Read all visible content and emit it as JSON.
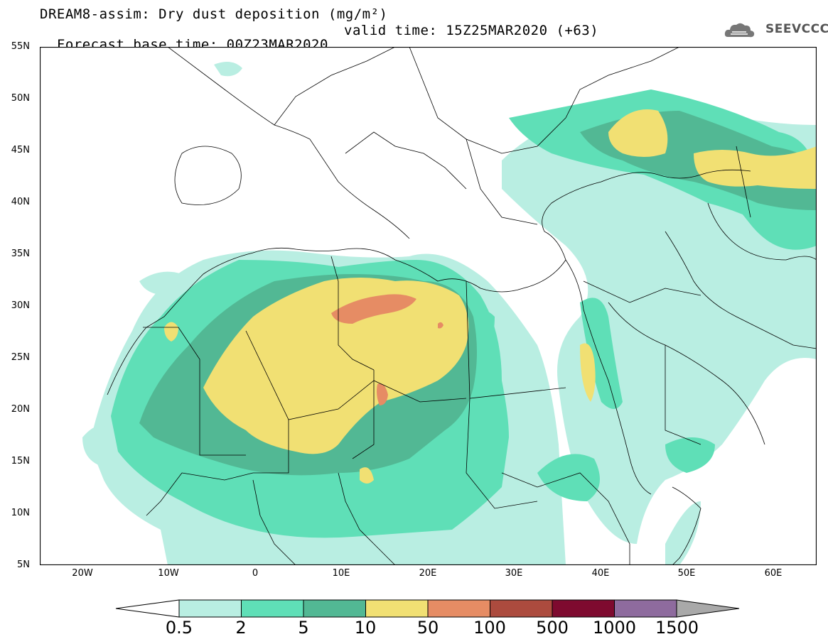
{
  "header": {
    "title_line1": "DREAM8-assim: Dry dust deposition (mg/m²)",
    "base_time": "Forecast base time: 00Z23MAR2020",
    "valid_time": "valid time: 15Z25MAR2020 (+63)"
  },
  "logo": {
    "text": "SEEVCCC",
    "icon": "cloud-icon"
  },
  "map": {
    "lat_labels": [
      "55N",
      "50N",
      "45N",
      "40N",
      "35N",
      "30N",
      "25N",
      "20N",
      "15N",
      "10N",
      "5N"
    ],
    "lon_labels": [
      "20W",
      "10W",
      "0",
      "10E",
      "20E",
      "30E",
      "40E",
      "50E",
      "60E"
    ],
    "extent": {
      "lon_min": -25,
      "lon_max": 65,
      "lat_min": 5,
      "lat_max": 55
    },
    "land_color": "#ffffff",
    "border_color": "#000000"
  },
  "legend": {
    "labels": [
      "0.5",
      "2",
      "5",
      "10",
      "50",
      "100",
      "500",
      "1000",
      "1500"
    ],
    "colors": [
      "#b9eee2",
      "#5fdfb7",
      "#52b894",
      "#f1e073",
      "#e68c64",
      "#ac4b3e",
      "#7e0a2f",
      "#8e6b9e",
      "#a9a9a9"
    ],
    "low_end_color": "#ffffff"
  }
}
